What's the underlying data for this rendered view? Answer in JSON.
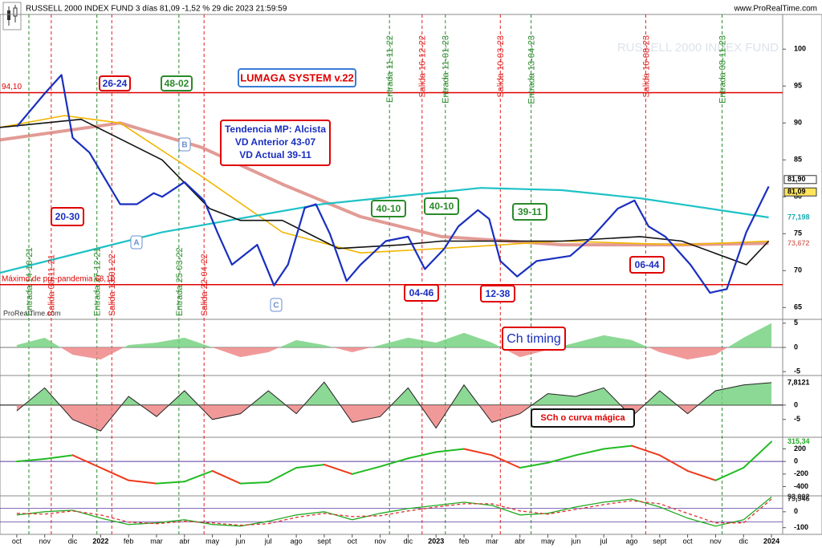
{
  "chart_data": [
    {
      "type": "line",
      "title": "RUSSELL 2000 INDEX FUND 3 días 81,09 -1,52 % 29 dic 2023 21:59:59",
      "source": "www.ProRealTime.com",
      "watermark": "RUSSELL 2000 INDEX FUND",
      "credit": "ProRealTime.com",
      "ylim": [
        63.4,
        104.7
      ],
      "yticks": [
        65,
        70,
        75,
        80,
        85,
        90,
        95,
        100
      ],
      "series": [
        {
          "color": "#1a2fbf",
          "x": [
            0,
            1,
            1.6,
            2,
            2.6,
            3.7,
            4.3,
            4.9,
            5.2,
            6,
            6.7,
            7.2,
            7.7,
            8.6,
            9.2,
            9.7,
            10.3,
            10.7,
            11.2,
            11.8,
            12.3,
            13.2,
            14,
            14.6,
            15.3,
            15.8,
            16.5,
            16.9,
            17.3,
            17.9,
            18.6,
            19.8,
            20.6,
            21.5,
            22.1,
            22.6,
            23.2,
            24.1,
            24.8,
            25.4,
            26.1,
            26.9
          ],
          "values": [
            89.5,
            94,
            96.5,
            88,
            86,
            79,
            79,
            80.5,
            80,
            82,
            79.5,
            75,
            70.8,
            73.5,
            68,
            70.8,
            78.5,
            79,
            75,
            68.6,
            70.8,
            74,
            74.6,
            70.2,
            73,
            76,
            78.2,
            77,
            71.3,
            69.2,
            71.3,
            72,
            74.6,
            78.4,
            79.5,
            76,
            74.6,
            70.8,
            67,
            67.5,
            75.2,
            81.4
          ]
        },
        {
          "color": "#1ec2c6",
          "x": [
            -0.6,
            5.2,
            10.9,
            16.6,
            19.5,
            22.3,
            26.9
          ],
          "values": [
            69.7,
            75.2,
            79,
            81.2,
            80.9,
            79.8,
            77.2
          ]
        },
        {
          "color": "#d87a72",
          "x": [
            -0.6,
            3.7,
            6.6,
            9.5,
            12.3,
            15.2,
            19.5,
            23.8,
            26.9
          ],
          "values": [
            87.7,
            90,
            86.7,
            81.7,
            77.3,
            74.6,
            73.5,
            73.5,
            73.7
          ]
        },
        {
          "color": "#f2b600",
          "x": [
            -0.6,
            1.7,
            3.7,
            6.6,
            9.5,
            12.3,
            15.2,
            19.5,
            23.8,
            26.9
          ],
          "values": [
            89.4,
            91,
            90,
            82.8,
            75.2,
            72.4,
            73,
            74,
            73.5,
            74
          ]
        },
        {
          "color": "#111111",
          "x": [
            -0.6,
            2.3,
            5.2,
            6.9,
            8,
            9.5,
            11.5,
            13.8,
            15.2,
            16.6,
            19.5,
            22.3,
            23.8,
            26.1,
            26.9
          ],
          "values": [
            89.4,
            90.5,
            85,
            78.4,
            76.8,
            76.8,
            73,
            73.5,
            74,
            74,
            74,
            74.6,
            74,
            70.8,
            74
          ]
        }
      ],
      "hlines": [
        {
          "value": 94.1,
          "label": "94,10",
          "color": "#e00000"
        },
        {
          "value": 68.1,
          "label": "Máximo de pre-pandemia 68,10",
          "color": "#e00000"
        }
      ],
      "price_labels": [
        {
          "value": 81.9,
          "label": "81,90",
          "color": "#000000"
        },
        {
          "value": 81.09,
          "label": "81,09",
          "color": "#000000"
        },
        {
          "value": 77.198,
          "label": "77,198",
          "color": "#17a9b0"
        },
        {
          "value": 73.672,
          "label": "73,672",
          "color": "#d87a72"
        }
      ],
      "signals": [
        {
          "label": "Entrada 14-10-21",
          "color": "#2a8a2a"
        },
        {
          "label": "Salida 08-11-21",
          "color": "#e02020"
        },
        {
          "label": "Entrada 27-12-21",
          "color": "#2a8a2a"
        },
        {
          "label": "Salida 13-01-22",
          "color": "#e02020"
        },
        {
          "label": "Entrada 25-03-22",
          "color": "#2a8a2a"
        },
        {
          "label": "Salida 22-04-22",
          "color": "#e02020"
        },
        {
          "label": "Entrada 11-11-22",
          "color": "#2a8a2a"
        },
        {
          "label": "Salida 16-12-22",
          "color": "#e02020"
        },
        {
          "label": "Entrada 11-01-23",
          "color": "#2a8a2a"
        },
        {
          "label": "Salida 10-03-23",
          "color": "#e02020"
        },
        {
          "label": "Entrada 13-04-23",
          "color": "#2a8a2a"
        },
        {
          "label": "Salida 16-08-23",
          "color": "#e02020"
        },
        {
          "label": "Entrada 08-11-23",
          "color": "#2a8a2a"
        }
      ],
      "boxes": [
        {
          "text": "26-24",
          "color": "#e00000"
        },
        {
          "text": "48-02",
          "color": "#2a8a2a"
        },
        {
          "text": "LUMAGA SYSTEM v.22",
          "color": "#3a7bd5"
        },
        {
          "lines": [
            "Tendencia MP: Alcista",
            "VD Anterior 43-07",
            "VD Actual 39-11"
          ],
          "color": "#e00000"
        },
        {
          "text": "20-30",
          "color": "#e00000"
        },
        {
          "text": "40-10",
          "color": "#2a8a2a"
        },
        {
          "text": "40-10",
          "color": "#2a8a2a"
        },
        {
          "text": "39-11",
          "color": "#2a8a2a"
        },
        {
          "text": "04-46",
          "color": "#e00000"
        },
        {
          "text": "12-38",
          "color": "#e00000"
        },
        {
          "text": "06-44",
          "color": "#e00000"
        },
        {
          "text": "A",
          "color": "#6a8fd0"
        },
        {
          "text": "B",
          "color": "#6a8fd0"
        },
        {
          "text": "C",
          "color": "#6a8fd0"
        }
      ]
    },
    {
      "type": "area",
      "annotation": "Ch timing",
      "ylim": [
        -5.8,
        5.8
      ],
      "yticks": [
        5,
        0,
        -5
      ],
      "x": [
        0,
        1,
        2,
        3,
        4,
        5,
        6,
        7,
        8,
        9,
        10,
        11,
        12,
        13,
        14,
        15,
        16,
        17,
        18,
        19,
        20,
        21,
        22,
        23,
        24,
        25,
        26,
        27
      ],
      "values": [
        0.5,
        2,
        -1.5,
        -2.5,
        0.5,
        1,
        2,
        0,
        -2,
        -1,
        1.5,
        0.5,
        -1,
        0.5,
        2,
        1,
        3,
        1,
        -2,
        -0.5,
        1,
        2.5,
        1.5,
        -1,
        -2.5,
        -1.5,
        2,
        5
      ]
    },
    {
      "type": "area",
      "annotation": "SCh o curva mágica",
      "ylim": [
        -11.2,
        10.3
      ],
      "yticks": [
        0,
        -5
      ],
      "x": [
        0,
        1,
        2,
        3,
        4,
        5,
        6,
        7,
        8,
        9,
        10,
        11,
        12,
        13,
        14,
        15,
        16,
        17,
        18,
        19,
        20,
        21,
        22,
        23,
        24,
        25,
        26,
        27
      ],
      "values": [
        -2,
        6,
        -5,
        -9,
        3,
        -4,
        5,
        -5,
        -3,
        5,
        -3,
        8,
        -6,
        -4,
        6,
        -8,
        7,
        -6,
        -3,
        4,
        3,
        6,
        -4,
        5,
        -3,
        5,
        7,
        7.8121
      ],
      "value_labels": [
        null,
        null,
        null,
        null,
        null,
        null,
        null,
        null,
        null,
        null,
        null,
        null,
        null,
        null,
        null,
        null,
        null,
        null,
        null,
        null,
        null,
        null,
        null,
        null,
        null,
        null,
        null,
        "7,8121"
      ]
    },
    {
      "type": "line",
      "ylim": [
        -547,
        385
      ],
      "yticks": [
        200,
        0,
        -200,
        -400
      ],
      "x": [
        0,
        1,
        2,
        3,
        4,
        5,
        6,
        7,
        8,
        9,
        10,
        11,
        12,
        13,
        14,
        15,
        16,
        17,
        18,
        19,
        20,
        21,
        22,
        23,
        24,
        25,
        26,
        27
      ],
      "values": [
        0,
        40,
        100,
        -100,
        -300,
        -350,
        -320,
        -150,
        -350,
        -330,
        -100,
        -50,
        -200,
        -80,
        50,
        150,
        200,
        100,
        -100,
        -20,
        100,
        200,
        250,
        100,
        -150,
        -300,
        -100,
        315.34
      ],
      "value_labels": [
        null,
        null,
        null,
        null,
        null,
        null,
        null,
        null,
        null,
        null,
        null,
        null,
        null,
        null,
        null,
        null,
        null,
        null,
        null,
        null,
        null,
        null,
        null,
        null,
        null,
        null,
        null,
        "315,34"
      ]
    },
    {
      "type": "line",
      "ylim": [
        -142,
        100
      ],
      "yticks": [
        0,
        -100
      ],
      "x": [
        0,
        1,
        2,
        3,
        4,
        5,
        6,
        7,
        8,
        9,
        10,
        11,
        12,
        13,
        14,
        15,
        16,
        17,
        18,
        19,
        20,
        21,
        22,
        23,
        24,
        25,
        26,
        27
      ],
      "xlim": [
        -0.6,
        27.4
      ],
      "xticks": [
        {
          "value": 0,
          "label": "oct"
        },
        {
          "value": 1,
          "label": "nov"
        },
        {
          "value": 2,
          "label": "dic"
        },
        {
          "value": 3,
          "label": "2022"
        },
        {
          "value": 4,
          "label": "feb"
        },
        {
          "value": 5,
          "label": "mar"
        },
        {
          "value": 6,
          "label": "abr"
        },
        {
          "value": 7,
          "label": "may"
        },
        {
          "value": 8,
          "label": "jun"
        },
        {
          "value": 9,
          "label": "jul"
        },
        {
          "value": 10,
          "label": "ago"
        },
        {
          "value": 11,
          "label": "sept"
        },
        {
          "value": 12,
          "label": "oct"
        },
        {
          "value": 13,
          "label": "nov"
        },
        {
          "value": 14,
          "label": "dic"
        },
        {
          "value": 15,
          "label": "2023"
        },
        {
          "value": 16,
          "label": "feb"
        },
        {
          "value": 17,
          "label": "mar"
        },
        {
          "value": 18,
          "label": "abr"
        },
        {
          "value": 19,
          "label": "may"
        },
        {
          "value": 20,
          "label": "jun"
        },
        {
          "value": 21,
          "label": "jul"
        },
        {
          "value": 22,
          "label": "ago"
        },
        {
          "value": 23,
          "label": "sept"
        },
        {
          "value": 24,
          "label": "oct"
        },
        {
          "value": 25,
          "label": "nov"
        },
        {
          "value": 26,
          "label": "dic"
        },
        {
          "value": 27,
          "label": "2024"
        }
      ],
      "series": [
        {
          "color": "#22aa22",
          "values": [
            -20,
            0,
            10,
            -40,
            -80,
            -70,
            -50,
            -80,
            -90,
            -60,
            -20,
            0,
            -50,
            -10,
            20,
            40,
            60,
            40,
            -20,
            -10,
            30,
            60,
            80,
            30,
            -40,
            -90,
            -50,
            93.002
          ],
          "value_labels": [
            null,
            null,
            null,
            null,
            null,
            null,
            null,
            null,
            null,
            null,
            null,
            null,
            null,
            null,
            null,
            null,
            null,
            null,
            null,
            null,
            null,
            null,
            null,
            null,
            null,
            null,
            null,
            "93,002"
          ]
        },
        {
          "color": "#e03030",
          "values": [
            -10,
            -15,
            5,
            -20,
            -65,
            -75,
            -60,
            -70,
            -85,
            -75,
            -35,
            -10,
            -30,
            -25,
            5,
            30,
            50,
            50,
            5,
            -15,
            15,
            45,
            70,
            50,
            -10,
            -70,
            -70,
            79.946
          ],
          "value_labels": [
            null,
            null,
            null,
            null,
            null,
            null,
            null,
            null,
            null,
            null,
            null,
            null,
            null,
            null,
            null,
            null,
            null,
            null,
            null,
            null,
            null,
            null,
            null,
            null,
            null,
            null,
            null,
            "79,946"
          ]
        }
      ]
    }
  ]
}
